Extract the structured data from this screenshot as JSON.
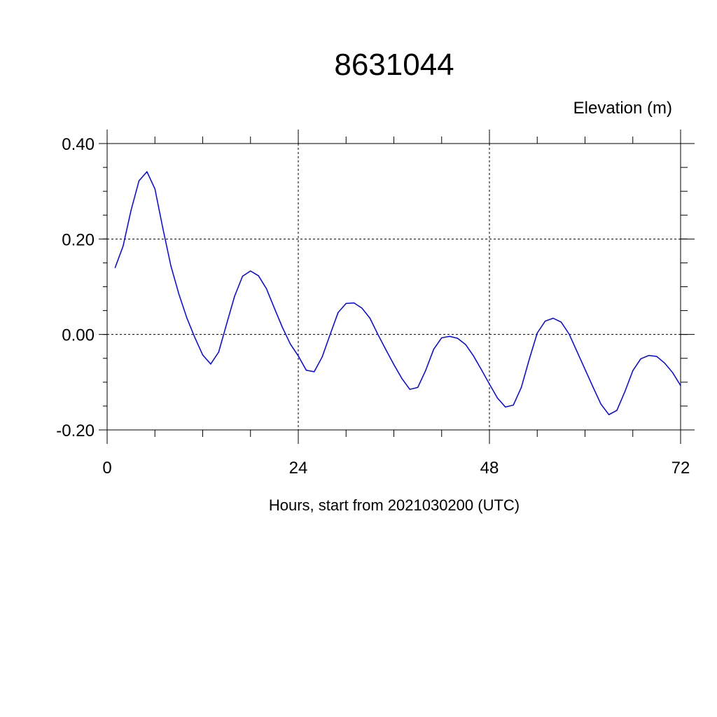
{
  "chart_data": {
    "type": "line",
    "title": "8631044",
    "subtitle": "Elevation (m)",
    "xlabel": "Hours, start from 2021030200 (UTC)",
    "ylabel": "",
    "xlim": [
      0,
      72
    ],
    "ylim": [
      -0.2,
      0.4
    ],
    "x_ticks": [
      0,
      24,
      48,
      72
    ],
    "x_tick_labels": [
      "0",
      "24",
      "48",
      "72"
    ],
    "y_ticks": [
      -0.2,
      0.0,
      0.2,
      0.4
    ],
    "y_tick_labels": [
      "-0.20",
      "0.00",
      "0.20",
      "0.40"
    ],
    "grid": true,
    "line_color": "#0000ff",
    "series": [
      {
        "x": [
          1,
          2,
          3,
          4,
          5,
          6,
          7,
          8,
          9,
          10,
          11,
          12,
          13,
          14,
          15,
          16,
          17,
          18,
          19,
          20,
          21,
          22,
          23,
          24,
          25,
          26,
          27,
          28,
          29,
          30,
          31,
          32,
          33,
          34,
          35,
          36,
          37,
          38,
          39,
          40,
          41,
          42,
          43,
          44,
          45,
          46,
          47,
          48,
          49,
          50,
          51,
          52,
          53,
          54,
          55,
          56,
          57,
          58,
          59,
          60,
          61,
          62,
          63,
          64,
          65,
          66,
          67,
          68,
          69,
          70,
          71,
          72
        ],
        "values": [
          0.14,
          0.185,
          0.26,
          0.322,
          0.341,
          0.305,
          0.222,
          0.144,
          0.085,
          0.035,
          -0.006,
          -0.043,
          -0.062,
          -0.037,
          0.022,
          0.08,
          0.122,
          0.133,
          0.123,
          0.096,
          0.055,
          0.015,
          -0.02,
          -0.045,
          -0.075,
          -0.078,
          -0.047,
          0.0,
          0.046,
          0.065,
          0.066,
          0.055,
          0.034,
          0.0,
          -0.032,
          -0.063,
          -0.092,
          -0.115,
          -0.111,
          -0.075,
          -0.031,
          -0.007,
          -0.004,
          -0.008,
          -0.021,
          -0.045,
          -0.074,
          -0.104,
          -0.133,
          -0.152,
          -0.148,
          -0.111,
          -0.052,
          0.003,
          0.028,
          0.034,
          0.026,
          0.001,
          -0.036,
          -0.073,
          -0.11,
          -0.146,
          -0.168,
          -0.159,
          -0.12,
          -0.076,
          -0.051,
          -0.044,
          -0.046,
          -0.06,
          -0.08,
          -0.107
        ]
      }
    ]
  }
}
